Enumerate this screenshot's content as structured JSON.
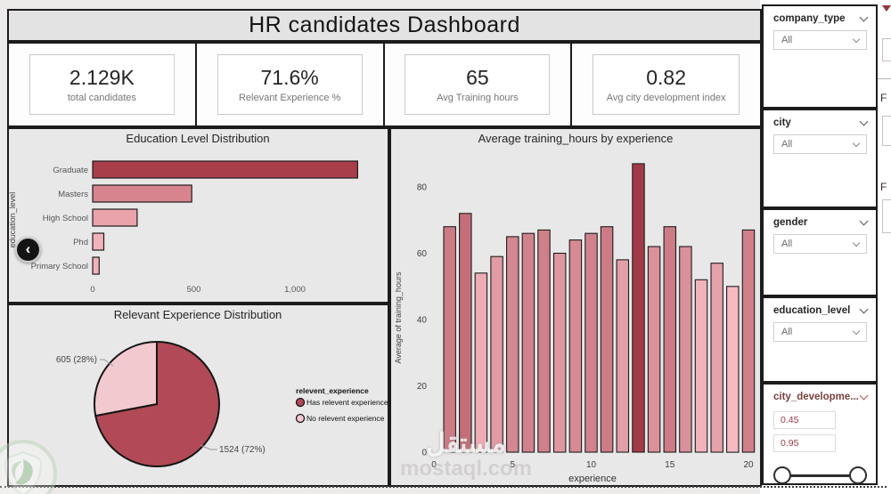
{
  "title": "HR candidates Dashboard",
  "nav": {
    "back_icon": "‹"
  },
  "kpis": [
    {
      "value": "2.129K",
      "label": "total candidates"
    },
    {
      "value": "71.6%",
      "label": "Relevant Experience %"
    },
    {
      "value": "65",
      "label": "Avg Training hours"
    },
    {
      "value": "0.82",
      "label": "Avg city development index"
    }
  ],
  "chart_data": [
    {
      "type": "bar",
      "orientation": "horizontal",
      "title": "Education Level Distribution",
      "ylabel": "education_level",
      "categories": [
        "Graduate",
        "Masters",
        "High School",
        "Phd",
        "Primary School"
      ],
      "values": [
        1310,
        490,
        220,
        55,
        32
      ],
      "colors": [
        "#a93e4b",
        "#d8848e",
        "#eaa3ab",
        "#f1b2ba",
        "#f1b2ba"
      ],
      "xticks": [
        0,
        500,
        1000
      ],
      "xtick_labels": [
        "0",
        "500",
        "1,000"
      ],
      "xlim": [
        0,
        1450
      ],
      "grid": false
    },
    {
      "type": "bar",
      "orientation": "vertical",
      "title": "Average training_hours by experience",
      "xlabel": "experience",
      "ylabel": "Average of training_hours",
      "x": [
        1,
        2,
        3,
        4,
        5,
        6,
        7,
        8,
        9,
        10,
        11,
        12,
        13,
        14,
        15,
        16,
        17,
        18,
        19,
        20
      ],
      "values": [
        68,
        72,
        54,
        59,
        65,
        66,
        67,
        60,
        64,
        66,
        68,
        58,
        87,
        62,
        68,
        62,
        52,
        57,
        50,
        67
      ],
      "yticks": [
        0,
        20,
        40,
        60,
        80
      ],
      "xticks": [
        0,
        5,
        10,
        15,
        20
      ],
      "ylim": [
        0,
        95
      ],
      "grid": false,
      "color_scale": {
        "min_value": 50,
        "max_value": 87,
        "min_color": "#f5bac1",
        "max_color": "#a23b48"
      }
    },
    {
      "type": "pie",
      "title": "Relevant Experience Distribution",
      "legend_title": "relevent_experience",
      "legend_position": "right",
      "slices": [
        {
          "label": "Has relevent experience",
          "value": 1524,
          "pct": 72,
          "display": "1524 (72%)",
          "color": "#b14a56"
        },
        {
          "label": "No relevent experience",
          "value": 605,
          "pct": 28,
          "display": "605 (28%)",
          "color": "#f2c9cf"
        }
      ]
    }
  ],
  "slicers": [
    {
      "name": "company_type",
      "kind": "dropdown",
      "value": "All"
    },
    {
      "name": "city",
      "kind": "dropdown",
      "value": "All"
    },
    {
      "name": "gender",
      "kind": "dropdown",
      "value": "All"
    },
    {
      "name": "education_level",
      "kind": "dropdown",
      "value": "All"
    },
    {
      "name": "city_developme...",
      "kind": "range",
      "min_value": "0.45",
      "max_value": "0.95"
    }
  ],
  "right_pane": {
    "labels": [
      "F",
      "F"
    ]
  },
  "watermark": {
    "text_ar": "مستقل",
    "text_en": "mostaql.com"
  },
  "colors": {
    "accent_dark": "#a93e4b",
    "accent_light": "#f2c9cf",
    "panel_bg": "#e9e8e8",
    "border": "#1c1c1c"
  }
}
